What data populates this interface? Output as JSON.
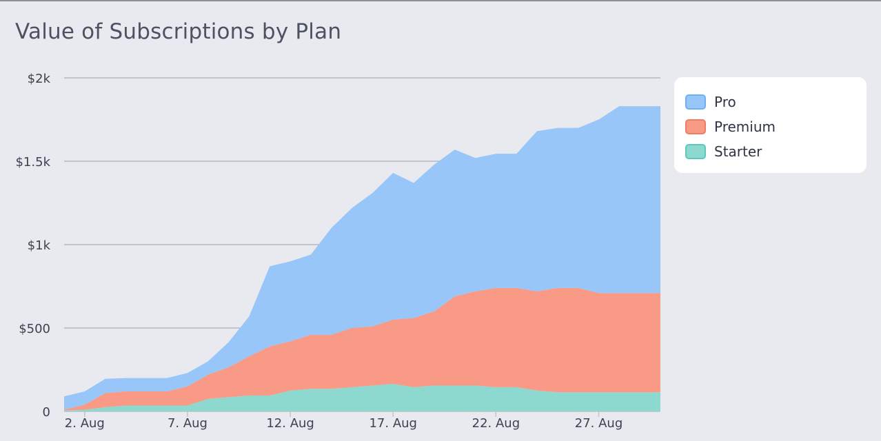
{
  "title": "Value of Subscriptions by Plan",
  "chart_data": {
    "type": "area",
    "stacked": true,
    "title": "Value of Subscriptions by Plan",
    "xlabel": "",
    "ylabel": "",
    "x": [
      1,
      2,
      3,
      4,
      5,
      6,
      7,
      8,
      9,
      10,
      11,
      12,
      13,
      14,
      15,
      16,
      17,
      18,
      19,
      20,
      21,
      22,
      23,
      24,
      25,
      26,
      27,
      28,
      29,
      30
    ],
    "x_tick_values": [
      2,
      7,
      12,
      17,
      22,
      27
    ],
    "x_tick_labels": [
      "2. Aug",
      "7. Aug",
      "12. Aug",
      "17. Aug",
      "22. Aug",
      "27. Aug"
    ],
    "xlim": [
      1,
      30
    ],
    "ylim": [
      0,
      2000
    ],
    "y_tick_values": [
      0,
      500,
      1000,
      1500,
      2000
    ],
    "y_tick_labels": [
      "0",
      "$500",
      "$1k",
      "$1.5k",
      "$2k"
    ],
    "grid": true,
    "legend_position": "top-right",
    "series": [
      {
        "name": "Starter",
        "color": "#8dd9d0",
        "values": [
          5,
          10,
          25,
          35,
          35,
          35,
          35,
          75,
          85,
          95,
          95,
          125,
          135,
          135,
          145,
          155,
          165,
          145,
          155,
          155,
          155,
          145,
          145,
          125,
          115,
          115,
          115,
          115,
          115,
          115
        ]
      },
      {
        "name": "Premium",
        "color": "#f99a87",
        "values": [
          5,
          30,
          85,
          85,
          85,
          85,
          115,
          145,
          180,
          235,
          295,
          295,
          325,
          325,
          355,
          355,
          385,
          415,
          445,
          535,
          565,
          595,
          595,
          595,
          625,
          625,
          595,
          595,
          595,
          595
        ]
      },
      {
        "name": "Pro",
        "color": "#98c6f8",
        "values": [
          80,
          80,
          85,
          80,
          80,
          80,
          80,
          80,
          150,
          240,
          480,
          480,
          480,
          640,
          720,
          800,
          880,
          810,
          880,
          880,
          800,
          805,
          805,
          960,
          960,
          960,
          1040,
          1120,
          1120,
          1120
        ]
      }
    ]
  },
  "legend": {
    "items": [
      {
        "label": "Pro",
        "fill": "#98c6f8",
        "border": "#6cb0f4"
      },
      {
        "label": "Premium",
        "fill": "#f99a87",
        "border": "#f07c66"
      },
      {
        "label": "Starter",
        "fill": "#8dd9d0",
        "border": "#5cc9bc"
      }
    ]
  }
}
